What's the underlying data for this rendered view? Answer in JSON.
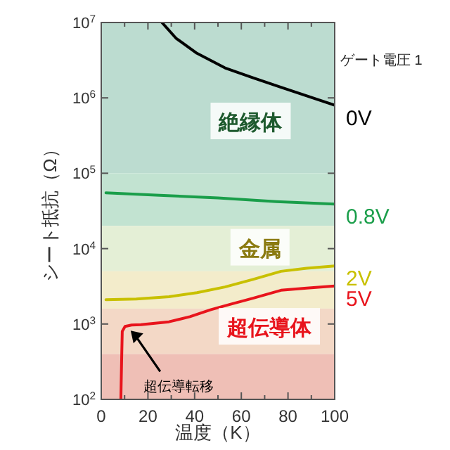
{
  "chart_data": {
    "type": "line",
    "xlabel": "温度（K）",
    "ylabel": "シート抵抗（Ω）",
    "legend_title": "ゲート電圧 1",
    "log": "y",
    "xlim": [
      0,
      100
    ],
    "xticks": [
      0,
      {
        "value": 10,
        "label": null
      },
      20,
      {
        "value": 30,
        "label": null
      },
      40,
      {
        "value": 50,
        "label": null
      },
      60,
      {
        "value": 70,
        "label": null
      },
      80,
      {
        "value": 90,
        "label": null
      },
      100
    ],
    "ylim": [
      100,
      10000000
    ],
    "yticks": [
      {
        "value": 100,
        "label": "10$^{2}$"
      },
      {
        "value": 1000,
        "label": "10$^{3}$"
      },
      {
        "value": 10000,
        "label": "10$^{4}$"
      },
      {
        "value": 100000,
        "label": "10$^{5}$"
      },
      {
        "value": 1000000,
        "label": "10$^{6}$"
      },
      {
        "value": 10000000,
        "label": "10$^{7}$"
      }
    ],
    "grid": false,
    "series": [
      {
        "name": "0V",
        "color": "#000000",
        "x": [
          26,
          32,
          41,
          53,
          65,
          77,
          100
        ],
        "values": [
          10000000,
          6200000,
          3900000,
          2500000,
          1850000,
          1380000,
          800000
        ]
      },
      {
        "name": "0.8V",
        "color": "#1a9e4a",
        "x": [
          2,
          25,
          50,
          75,
          100
        ],
        "values": [
          55000,
          51000,
          47000,
          42000,
          39000
        ]
      },
      {
        "name": "2V",
        "color": "#c8c000",
        "x": [
          2,
          15,
          29,
          41,
          53,
          65,
          77,
          88,
          100
        ],
        "values": [
          2100,
          2150,
          2300,
          2600,
          3100,
          3900,
          5000,
          5500,
          5900
        ]
      },
      {
        "name": "5V",
        "color": "#e8141c",
        "x": [
          8.4,
          8.7,
          9,
          10.2,
          13,
          17,
          29,
          38,
          47,
          56,
          65,
          77,
          88,
          100
        ],
        "values": [
          100,
          300,
          800,
          930,
          970,
          980,
          1070,
          1250,
          1550,
          1850,
          2200,
          2800,
          3000,
          3200
        ]
      }
    ],
    "bands": [
      {
        "axis": "y",
        "from": 100000,
        "to": 10000000,
        "color": "#bcdcd0"
      },
      {
        "axis": "y",
        "from": 20000,
        "to": 100000,
        "color": "#c2e3d1"
      },
      {
        "axis": "y",
        "from": 5000,
        "to": 20000,
        "color": "#e4efd6"
      },
      {
        "axis": "y",
        "from": 1600,
        "to": 5000,
        "color": "#f3eccb"
      },
      {
        "axis": "y",
        "from": 400,
        "to": 1600,
        "color": "#f3d8c6"
      },
      {
        "axis": "y",
        "from": 100,
        "to": 400,
        "color": "#efbfb6"
      }
    ],
    "annotations": [
      "絶縁体",
      "金属",
      "超伝導体",
      {
        "text": "超伝導転移",
        "x": 12,
        "y": 850
      }
    ]
  }
}
